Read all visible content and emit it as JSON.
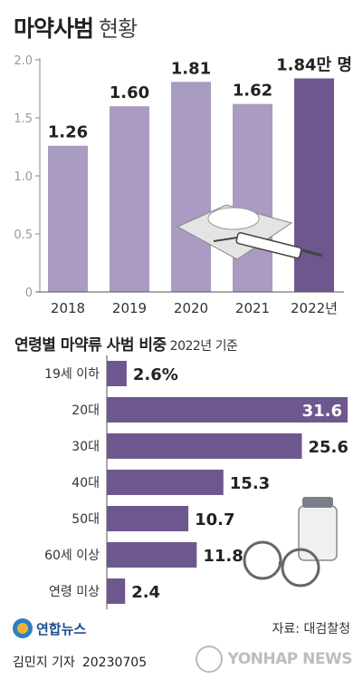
{
  "header": {
    "title": "마약사범",
    "subtitle": "현황"
  },
  "section2": {
    "title": "연령별 마약류 사범 비중",
    "note": "2022년 기준"
  },
  "footer": {
    "source": "자료: 대검찰청",
    "logo_text": "연합뉴스",
    "byline": "김민지 기자",
    "date": "20230705",
    "watermark": "YONHAP NEWS"
  },
  "colors": {
    "bar_light": "#a99bc2",
    "bar_dark": "#6e578f",
    "hbar": "#6e578f",
    "axis": "#888888"
  },
  "chart_data": [
    {
      "type": "bar",
      "categories": [
        "2018",
        "2019",
        "2020",
        "2021",
        "2022년"
      ],
      "values": [
        1.26,
        1.6,
        1.81,
        1.62,
        1.84
      ],
      "value_labels": [
        "1.26",
        "1.60",
        "1.81",
        "1.62",
        "1.84만 명"
      ],
      "ylim": [
        0,
        2.0
      ],
      "yticks": [
        "0",
        "0.5",
        "1.0",
        "1.5",
        "2.0"
      ],
      "highlight_index": 4,
      "grid": false
    },
    {
      "type": "bar",
      "orientation": "horizontal",
      "categories": [
        "19세 이하",
        "20대",
        "30대",
        "40대",
        "50대",
        "60세 이상",
        "연령 미상"
      ],
      "values": [
        2.6,
        31.6,
        25.6,
        15.3,
        10.7,
        11.8,
        2.4
      ],
      "value_labels": [
        "2.6%",
        "31.6",
        "25.6",
        "15.3",
        "10.7",
        "11.8",
        "2.4"
      ],
      "xlim": [
        0,
        31.6
      ]
    }
  ]
}
